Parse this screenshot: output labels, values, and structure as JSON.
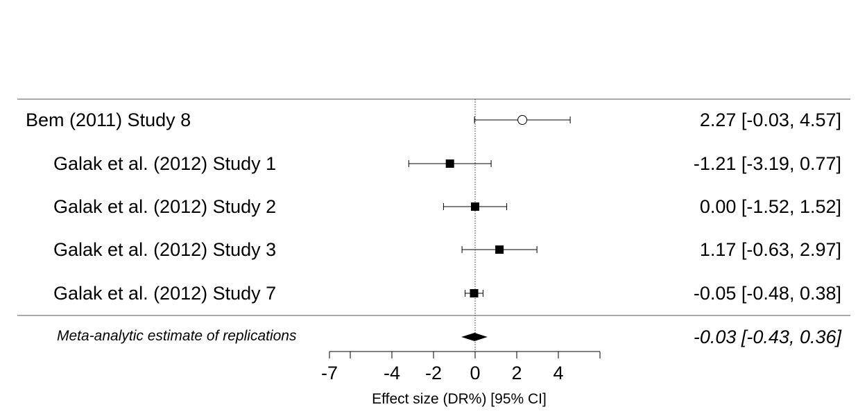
{
  "chart_data": {
    "type": "forest",
    "xlabel": "Effect size (DR%) [95% CI]",
    "xlim": [
      -7,
      5.5
    ],
    "xticks": [
      -7,
      -4,
      -2,
      0,
      2,
      4
    ],
    "extra_tick_marks": [
      -6,
      6
    ],
    "reference_line": 0,
    "studies": [
      {
        "label": "Bem (2011) Study 8",
        "estimate": 2.27,
        "lower": -0.03,
        "upper": 4.57,
        "ci_text": "2.27 [-0.03, 4.57]",
        "marker": "open-circle",
        "indent": false
      },
      {
        "label": "Galak et al. (2012) Study 1",
        "estimate": -1.21,
        "lower": -3.19,
        "upper": 0.77,
        "ci_text": "-1.21 [-3.19, 0.77]",
        "marker": "filled-square",
        "indent": true
      },
      {
        "label": "Galak et al. (2012) Study 2",
        "estimate": 0.0,
        "lower": -1.52,
        "upper": 1.52,
        "ci_text": "0.00 [-1.52, 1.52]",
        "marker": "filled-square",
        "indent": true
      },
      {
        "label": "Galak et al. (2012) Study 3",
        "estimate": 1.17,
        "lower": -0.63,
        "upper": 2.97,
        "ci_text": "1.17 [-0.63, 2.97]",
        "marker": "filled-square",
        "indent": true
      },
      {
        "label": "Galak et al. (2012) Study 7",
        "estimate": -0.05,
        "lower": -0.48,
        "upper": 0.38,
        "ci_text": "-0.05 [-0.48, 0.38]",
        "marker": "filled-square",
        "indent": true
      }
    ],
    "summary": {
      "label": "Meta-analytic estimate of replications",
      "estimate": -0.03,
      "lower": -0.43,
      "upper": 0.36,
      "ci_text": "-0.03 [-0.43, 0.36]",
      "marker": "diamond"
    }
  }
}
